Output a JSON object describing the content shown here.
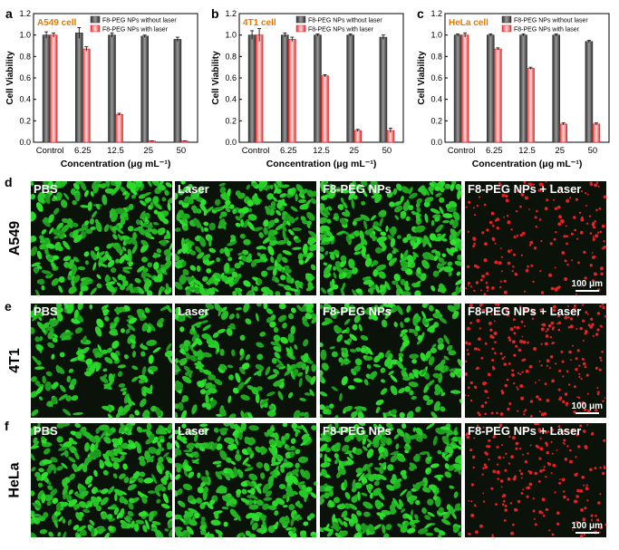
{
  "chart_data": [
    {
      "type": "bar",
      "panel": "a",
      "annotation": "A549 cell",
      "categories": [
        "Control",
        "6.25",
        "12.5",
        "25",
        "50"
      ],
      "series": [
        {
          "name": "F8-PEG NPs without laser",
          "values": [
            1.0,
            1.02,
            1.0,
            0.99,
            0.96
          ],
          "errors": [
            0.03,
            0.05,
            0.02,
            0.01,
            0.02
          ]
        },
        {
          "name": "F8-PEG NPs with laser",
          "values": [
            1.0,
            0.87,
            0.26,
            0.01,
            0.01
          ],
          "errors": [
            0.02,
            0.02,
            0.01,
            0.003,
            0.003
          ]
        }
      ],
      "xlabel": "Concentration (μg mL⁻¹)",
      "ylabel": "Cell Viability",
      "ylim": [
        0,
        1.2
      ],
      "yticks": [
        "0.0",
        "0.2",
        "0.4",
        "0.6",
        "0.8",
        "1.0",
        "1.2"
      ],
      "legend": "top-right",
      "colors": [
        "#6b6b6b",
        "#e84a4a"
      ]
    },
    {
      "type": "bar",
      "panel": "b",
      "annotation": "4T1 cell",
      "categories": [
        "Control",
        "6.25",
        "12.5",
        "25",
        "50"
      ],
      "series": [
        {
          "name": "F8-PEG NPs without laser",
          "values": [
            1.0,
            1.0,
            1.0,
            1.0,
            0.98
          ],
          "errors": [
            0.04,
            0.02,
            0.01,
            0.01,
            0.02
          ]
        },
        {
          "name": "F8-PEG NPs with laser",
          "values": [
            1.0,
            0.96,
            0.62,
            0.11,
            0.11
          ],
          "errors": [
            0.06,
            0.02,
            0.01,
            0.01,
            0.02
          ]
        }
      ],
      "xlabel": "Concentration (μg mL⁻¹)",
      "ylabel": "Cell Viability",
      "ylim": [
        0,
        1.2
      ],
      "yticks": [
        "0.0",
        "0.2",
        "0.4",
        "0.6",
        "0.8",
        "1.0",
        "1.2"
      ],
      "legend": "top-right",
      "colors": [
        "#6b6b6b",
        "#e84a4a"
      ]
    },
    {
      "type": "bar",
      "panel": "c",
      "annotation": "HeLa cell",
      "categories": [
        "Control",
        "6.25",
        "12.5",
        "25",
        "50"
      ],
      "series": [
        {
          "name": "F8-PEG NPs without laser",
          "values": [
            1.0,
            1.0,
            1.0,
            1.0,
            0.94
          ],
          "errors": [
            0.01,
            0.01,
            0.01,
            0.01,
            0.01
          ]
        },
        {
          "name": "F8-PEG NPs with laser",
          "values": [
            1.0,
            0.87,
            0.69,
            0.17,
            0.17
          ],
          "errors": [
            0.02,
            0.01,
            0.01,
            0.01,
            0.01
          ]
        }
      ],
      "xlabel": "Concentration (μg mL⁻¹)",
      "ylabel": "Cell Viability",
      "ylim": [
        0,
        1.2
      ],
      "yticks": [
        "0.0",
        "0.2",
        "0.4",
        "0.6",
        "0.8",
        "1.0",
        "1.2"
      ],
      "legend": "top-right",
      "colors": [
        "#6b6b6b",
        "#e84a4a"
      ]
    }
  ],
  "panel_letters": [
    "a",
    "b",
    "c",
    "d",
    "e",
    "f"
  ],
  "microscopy": {
    "rows": [
      {
        "letter": "d",
        "cell_line": "A549",
        "density": "confluent"
      },
      {
        "letter": "e",
        "cell_line": "4T1",
        "density": "clustered"
      },
      {
        "letter": "f",
        "cell_line": "HeLa",
        "density": "dense"
      }
    ],
    "columns": [
      {
        "label": "PBS",
        "stain": "live"
      },
      {
        "label": "Laser",
        "stain": "live"
      },
      {
        "label": "F8-PEG NPs",
        "stain": "live"
      },
      {
        "label": "F8-PEG NPs + Laser",
        "stain": "dead"
      }
    ],
    "scale_bar": "100 μm",
    "colors": {
      "live": "#2fd62f",
      "dead": "#e82222",
      "background": "#0b120a"
    }
  }
}
